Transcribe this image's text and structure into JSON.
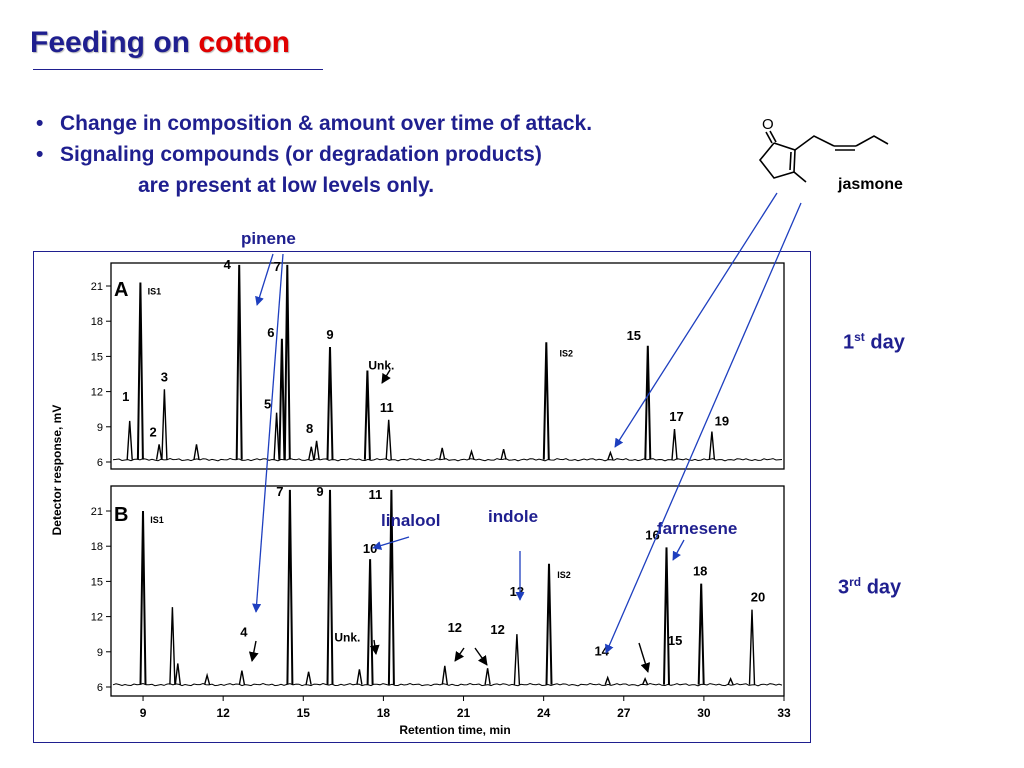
{
  "slide": {
    "title_main": "Feeding on",
    "title_highlight": "cotton",
    "bullets": [
      "Change in composition & amount over time of attack.",
      "Signaling compounds (or degradation products)",
      "are present at low levels only."
    ],
    "molecule_label": "jasmone",
    "day1_num": "1",
    "day1_sup": "st",
    "day1_word": "day",
    "day3_num": "3",
    "day3_sup": "rd",
    "day3_word": "day",
    "annotations": {
      "pinene": "pinene",
      "linalool": "linalool",
      "indole": "indole",
      "farnesene": "farnesene"
    },
    "colors": {
      "text": "#1f1f8f",
      "highlight": "#e00000",
      "arrow": "#1e3fbf",
      "trace": "#000000"
    }
  },
  "chart_data": {
    "type": "line",
    "xlabel": "Retention time, min",
    "ylabel": "Detector response, mV",
    "xlim": [
      7.8,
      33
    ],
    "ylim": [
      5.5,
      22.8
    ],
    "x_ticks": [
      9,
      12,
      15,
      18,
      21,
      24,
      27,
      30,
      33
    ],
    "y_ticks": [
      6,
      9,
      12,
      15,
      18,
      21
    ],
    "panels": [
      {
        "name": "A",
        "internal_standards": [
          "IS1",
          "IS2"
        ],
        "peaks": [
          {
            "label": "1",
            "rt": 8.5,
            "height": 9.5
          },
          {
            "label": "IS1",
            "rt": 8.9,
            "height": 21.3
          },
          {
            "label": "2",
            "rt": 9.6,
            "height": 7.5
          },
          {
            "label": "3",
            "rt": 9.8,
            "height": 12.2
          },
          {
            "label": "",
            "rt": 11.0,
            "height": 7.5
          },
          {
            "label": "4",
            "rt": 12.6,
            "height": 22.8
          },
          {
            "label": "5",
            "rt": 14.0,
            "height": 10.2
          },
          {
            "label": "6",
            "rt": 14.2,
            "height": 16.5
          },
          {
            "label": "7",
            "rt": 14.4,
            "height": 22.8
          },
          {
            "label": "",
            "rt": 15.3,
            "height": 7.3
          },
          {
            "label": "8",
            "rt": 15.5,
            "height": 7.8
          },
          {
            "label": "9",
            "rt": 16.0,
            "height": 15.8
          },
          {
            "label": "Unk.",
            "rt": 17.4,
            "height": 13.8
          },
          {
            "label": "11",
            "rt": 18.2,
            "height": 9.6
          },
          {
            "label": "",
            "rt": 20.2,
            "height": 7.2
          },
          {
            "label": "",
            "rt": 21.3,
            "height": 6.9
          },
          {
            "label": "",
            "rt": 22.5,
            "height": 7.1
          },
          {
            "label": "IS2",
            "rt": 24.1,
            "height": 16.2
          },
          {
            "label": "",
            "rt": 26.5,
            "height": 6.8
          },
          {
            "label": "15",
            "rt": 27.9,
            "height": 15.9
          },
          {
            "label": "17",
            "rt": 28.9,
            "height": 8.8
          },
          {
            "label": "19",
            "rt": 30.3,
            "height": 8.6
          }
        ]
      },
      {
        "name": "B",
        "internal_standards": [
          "IS1",
          "IS2"
        ],
        "peaks": [
          {
            "label": "IS1",
            "rt": 9.0,
            "height": 21.0
          },
          {
            "label": "",
            "rt": 10.1,
            "height": 12.8
          },
          {
            "label": "",
            "rt": 10.3,
            "height": 8.0
          },
          {
            "label": "",
            "rt": 11.4,
            "height": 7.0
          },
          {
            "label": "4",
            "rt": 12.7,
            "height": 7.4
          },
          {
            "label": "7",
            "rt": 14.5,
            "height": 22.8
          },
          {
            "label": "",
            "rt": 15.2,
            "height": 7.3
          },
          {
            "label": "9",
            "rt": 16.0,
            "height": 22.8
          },
          {
            "label": "Unk.",
            "rt": 17.1,
            "height": 7.5
          },
          {
            "label": "10",
            "rt": 17.5,
            "height": 16.9
          },
          {
            "label": "11",
            "rt": 18.3,
            "height": 22.8
          },
          {
            "label": "12",
            "rt": 20.3,
            "height": 7.8
          },
          {
            "label": "12",
            "rt": 21.9,
            "height": 7.6
          },
          {
            "label": "13",
            "rt": 23.0,
            "height": 10.5
          },
          {
            "label": "IS2",
            "rt": 24.2,
            "height": 16.5
          },
          {
            "label": "14",
            "rt": 26.4,
            "height": 6.8
          },
          {
            "label": "15",
            "rt": 27.8,
            "height": 6.7
          },
          {
            "label": "16",
            "rt": 28.6,
            "height": 17.9
          },
          {
            "label": "18",
            "rt": 29.9,
            "height": 14.8
          },
          {
            "label": "",
            "rt": 31.0,
            "height": 6.7
          },
          {
            "label": "20",
            "rt": 31.8,
            "height": 12.6
          }
        ]
      }
    ]
  }
}
